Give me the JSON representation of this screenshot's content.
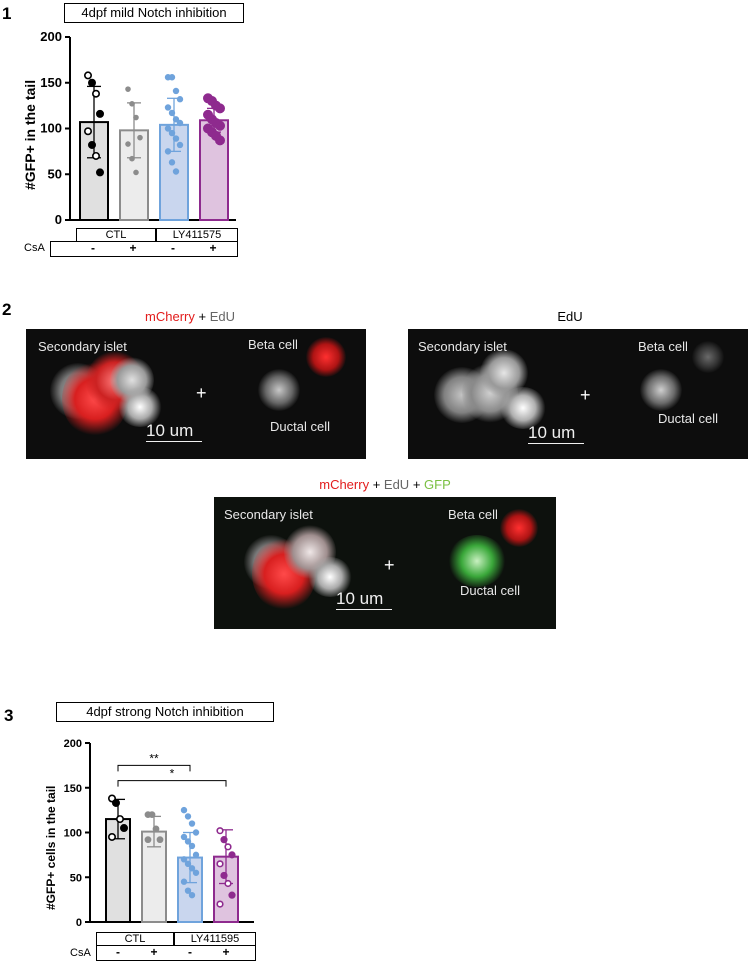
{
  "panels": {
    "p1": {
      "number": "1",
      "title": "4dpf mild Notch inhibition",
      "ylabel": "#GFP+ in the tail",
      "yticks": [
        "200",
        "150",
        "100",
        "50",
        "0"
      ],
      "groups": [
        "CTL",
        "LY411575"
      ],
      "cond_label": "CsA",
      "cond_values": [
        "-",
        "+",
        "-",
        "+"
      ]
    },
    "p2": {
      "number": "2",
      "caption_a": {
        "mcherry": "mCherry",
        "sep1": " + ",
        "edu": "EdU"
      },
      "caption_b": {
        "edu": "EdU"
      },
      "caption_c": {
        "mcherry": "mCherry",
        "sep1": " + ",
        "edu": "EdU",
        "sep2": " + ",
        "gfp": "GFP"
      },
      "labels": {
        "secondary_islet": "Secondary islet",
        "beta_cell": "Beta cell",
        "ductal_cell": "Ductal cell",
        "scale": "10 um",
        "plus": "+"
      }
    },
    "p3": {
      "number": "3",
      "title": "4dpf strong Notch inhibition",
      "ylabel": "#GFP+ cells in the tail",
      "yticks": [
        "200",
        "150",
        "100",
        "50",
        "0"
      ],
      "sig1": "**",
      "sig2": "*",
      "groups": [
        "CTL",
        "LY411595"
      ],
      "cond_label": "CsA",
      "cond_values": [
        "-",
        "+",
        "-",
        "+"
      ]
    }
  },
  "colors": {
    "ctl_dark_fill": "#e0e0e0",
    "ctl_light_fill": "#ececec",
    "ly_blue_fill": "#c9d6ee",
    "ly_purple_fill": "#dfc3df",
    "black": "#000000",
    "grey": "#8c8c8c",
    "blue": "#6fa3dc",
    "purple": "#8e2a8e"
  },
  "chart_data": [
    {
      "type": "bar",
      "title": "4dpf mild Notch inhibition",
      "ylabel": "#GFP+ in the tail",
      "ylim": [
        0,
        200
      ],
      "yticks": [
        0,
        50,
        100,
        150,
        200
      ],
      "categories": [
        "CTL CsA-",
        "CTL CsA+",
        "LY411575 CsA-",
        "LY411575 CsA+"
      ],
      "values": [
        107,
        98,
        104,
        109
      ],
      "errors": [
        39,
        30,
        29,
        13
      ],
      "points": [
        [
          158,
          150,
          138,
          116,
          97,
          82,
          70,
          52
        ],
        [
          143,
          127,
          112,
          90,
          83,
          67,
          52
        ],
        [
          156,
          156,
          141,
          132,
          123,
          117,
          110,
          106,
          100,
          95,
          89,
          82,
          75,
          63,
          53
        ],
        [
          133,
          130,
          125,
          122,
          115,
          110,
          106,
          103,
          100,
          96,
          92,
          87
        ]
      ]
    },
    {
      "type": "bar",
      "title": "4dpf strong Notch inhibition",
      "ylabel": "#GFP+ cells in the tail",
      "ylim": [
        0,
        200
      ],
      "yticks": [
        0,
        50,
        100,
        150,
        200
      ],
      "categories": [
        "CTL CsA-",
        "CTL CsA+",
        "LY411595 CsA-",
        "LY411595 CsA+"
      ],
      "values": [
        115,
        101,
        72,
        73
      ],
      "errors": [
        22,
        17,
        28,
        30
      ],
      "points": [
        [
          138,
          133,
          115,
          105,
          95
        ],
        [
          120,
          120,
          104,
          92,
          92
        ],
        [
          125,
          118,
          110,
          100,
          95,
          90,
          85,
          75,
          70,
          65,
          60,
          55,
          45,
          35,
          30
        ],
        [
          102,
          92,
          84,
          75,
          65,
          52,
          43,
          30,
          20
        ]
      ],
      "significance": [
        {
          "from": "CTL CsA-",
          "to": "LY411595 CsA-",
          "label": "**"
        },
        {
          "from": "CTL CsA-",
          "to": "LY411595 CsA+",
          "label": "*"
        }
      ]
    }
  ]
}
